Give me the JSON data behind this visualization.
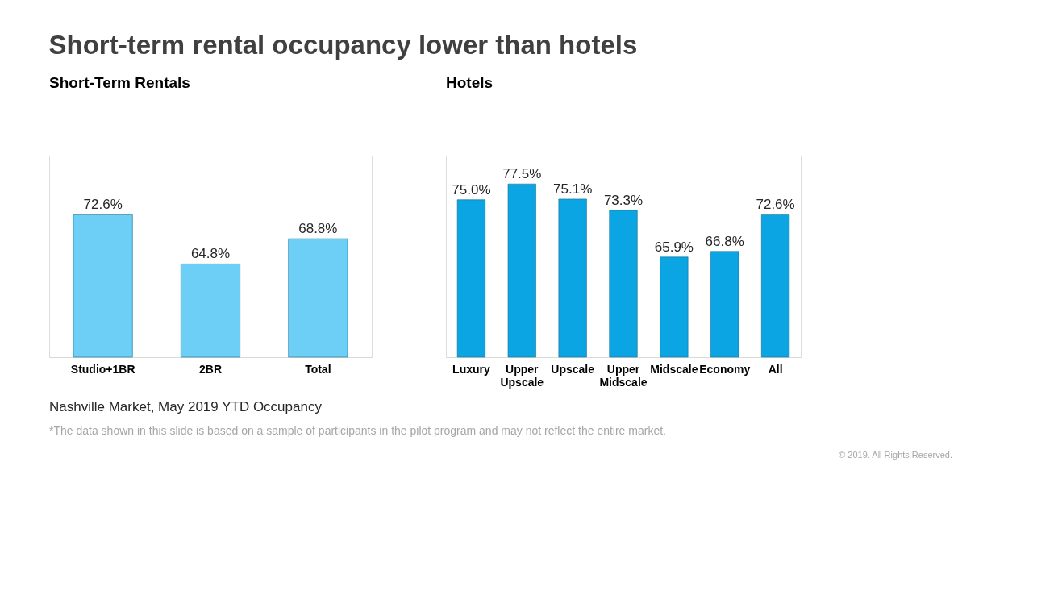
{
  "chart_data": [
    {
      "type": "bar",
      "title": "Short-term rental occupancy lower than hotels",
      "subtitle": "Short-Term Rentals",
      "categories": [
        "Studio+1BR",
        "2BR",
        "Total"
      ],
      "values": [
        72.6,
        64.8,
        68.8
      ],
      "value_labels": [
        "72.6%",
        "64.8%",
        "68.8%"
      ],
      "color": "#6dcff6",
      "ylim": [
        50,
        82
      ],
      "tick_labels": "x",
      "grid": false,
      "annotations": [
        "Nashville Market, May 2019 YTD Occupancy"
      ]
    },
    {
      "type": "bar",
      "subtitle": "Hotels",
      "categories": [
        "Luxury",
        "Upper Upscale",
        "Upscale",
        "Upper Midscale",
        "Midscale",
        "Economy",
        "All"
      ],
      "values": [
        75.0,
        77.5,
        75.1,
        73.3,
        65.9,
        66.8,
        72.6
      ],
      "value_labels": [
        "75.0%",
        "77.5%",
        "75.1%",
        "73.3%",
        "65.9%",
        "66.8%",
        "72.6%"
      ],
      "color": "#0aa5e2",
      "ylim": [
        50,
        82
      ],
      "tick_labels": "x",
      "grid": false,
      "annotations": [
        "*The data shown in this slide is based on a sample of participants in the pilot program and may not reflect the entire market.",
        "© 2019. All Rights Reserved."
      ]
    }
  ]
}
